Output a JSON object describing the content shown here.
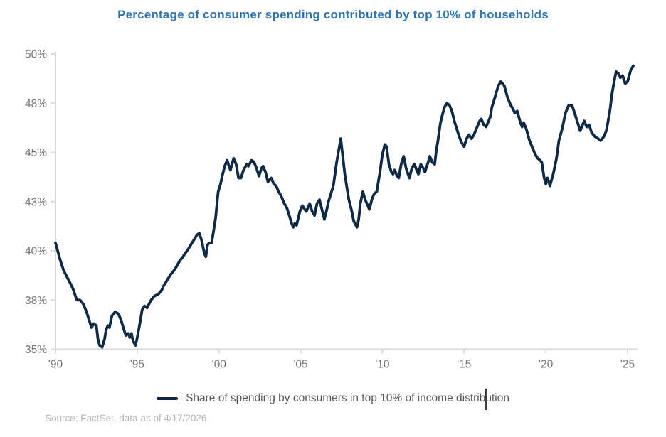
{
  "title": "Percentage of consumer spending contributed by top 10% of households",
  "legend": {
    "label": "Share of spending by consumers in top 10% of income distribution"
  },
  "source_note": "Source: FactSet, data as of 4/17/2026",
  "colors": {
    "line": "#0e2a47",
    "title": "#2e75b6",
    "axis": "#d8d8d8",
    "tick_label": "#767676",
    "legend_label": "#595959",
    "source_text": "#b5b5b5",
    "background": "#ffffff"
  },
  "chart_data": {
    "type": "line",
    "title": "Percentage of consumer spending contributed by top 10% of households",
    "xlabel": "",
    "ylabel": "",
    "grid": false,
    "legend_position": "bottom",
    "x_range": [
      1990,
      2025.6
    ],
    "y_range": [
      35,
      50
    ],
    "x_ticks": [
      {
        "label": "'90",
        "year": 1990
      },
      {
        "label": "'95",
        "year": 1995
      },
      {
        "label": "'00",
        "year": 2000
      },
      {
        "label": "'05",
        "year": 2005
      },
      {
        "label": "'10",
        "year": 2010
      },
      {
        "label": "'15",
        "year": 2015
      },
      {
        "label": "'20",
        "year": 2020
      },
      {
        "label": "'25",
        "year": 2025
      }
    ],
    "y_ticks": [
      {
        "label": "35%",
        "value": 35
      },
      {
        "label": "38%",
        "value": 37.5
      },
      {
        "label": "40%",
        "value": 40
      },
      {
        "label": "43%",
        "value": 42.5
      },
      {
        "label": "45%",
        "value": 45
      },
      {
        "label": "48%",
        "value": 47.5
      },
      {
        "label": "50%",
        "value": 50
      }
    ],
    "series": [
      {
        "name": "Share of spending by consumers in top 10% of income distribution",
        "points": [
          [
            1990.0,
            40.4
          ],
          [
            1990.3,
            39.5
          ],
          [
            1990.5,
            39.0
          ],
          [
            1990.75,
            38.6
          ],
          [
            1991.0,
            38.2
          ],
          [
            1991.1,
            38.0
          ],
          [
            1991.3,
            37.5
          ],
          [
            1991.5,
            37.5
          ],
          [
            1991.7,
            37.3
          ],
          [
            1991.9,
            36.9
          ],
          [
            1992.05,
            36.5
          ],
          [
            1992.2,
            36.1
          ],
          [
            1992.35,
            36.3
          ],
          [
            1992.5,
            36.2
          ],
          [
            1992.6,
            35.5
          ],
          [
            1992.7,
            35.2
          ],
          [
            1992.85,
            35.1
          ],
          [
            1993.0,
            35.5
          ],
          [
            1993.1,
            36.0
          ],
          [
            1993.2,
            36.2
          ],
          [
            1993.3,
            36.1
          ],
          [
            1993.45,
            36.7
          ],
          [
            1993.65,
            36.9
          ],
          [
            1993.85,
            36.8
          ],
          [
            1994.0,
            36.5
          ],
          [
            1994.15,
            36.1
          ],
          [
            1994.3,
            35.7
          ],
          [
            1994.45,
            35.8
          ],
          [
            1994.55,
            35.6
          ],
          [
            1994.65,
            35.8
          ],
          [
            1994.75,
            35.4
          ],
          [
            1994.9,
            35.2
          ],
          [
            1995.05,
            35.8
          ],
          [
            1995.2,
            36.5
          ],
          [
            1995.3,
            37.0
          ],
          [
            1995.45,
            37.2
          ],
          [
            1995.6,
            37.1
          ],
          [
            1995.85,
            37.5
          ],
          [
            1996.05,
            37.7
          ],
          [
            1996.3,
            37.8
          ],
          [
            1996.5,
            38.0
          ],
          [
            1996.6,
            38.2
          ],
          [
            1996.75,
            38.4
          ],
          [
            1996.9,
            38.6
          ],
          [
            1997.05,
            38.8
          ],
          [
            1997.25,
            39.0
          ],
          [
            1997.4,
            39.2
          ],
          [
            1997.6,
            39.5
          ],
          [
            1997.8,
            39.7
          ],
          [
            1997.95,
            39.9
          ],
          [
            1998.05,
            40.0
          ],
          [
            1998.2,
            40.2
          ],
          [
            1998.35,
            40.4
          ],
          [
            1998.5,
            40.6
          ],
          [
            1998.65,
            40.8
          ],
          [
            1998.8,
            40.9
          ],
          [
            1998.95,
            40.5
          ],
          [
            1999.1,
            39.9
          ],
          [
            1999.2,
            39.7
          ],
          [
            1999.3,
            40.3
          ],
          [
            1999.4,
            40.4
          ],
          [
            1999.55,
            40.4
          ],
          [
            1999.65,
            40.9
          ],
          [
            1999.8,
            41.7
          ],
          [
            1999.95,
            43.0
          ],
          [
            2000.1,
            43.4
          ],
          [
            2000.2,
            43.8
          ],
          [
            2000.35,
            44.3
          ],
          [
            2000.5,
            44.6
          ],
          [
            2000.7,
            44.1
          ],
          [
            2000.9,
            44.7
          ],
          [
            2001.05,
            44.4
          ],
          [
            2001.2,
            43.7
          ],
          [
            2001.35,
            43.7
          ],
          [
            2001.5,
            44.1
          ],
          [
            2001.7,
            44.4
          ],
          [
            2001.8,
            44.3
          ],
          [
            2002.0,
            44.6
          ],
          [
            2002.15,
            44.5
          ],
          [
            2002.3,
            44.2
          ],
          [
            2002.45,
            43.8
          ],
          [
            2002.6,
            44.2
          ],
          [
            2002.7,
            44.3
          ],
          [
            2002.85,
            44.0
          ],
          [
            2003.0,
            43.5
          ],
          [
            2003.2,
            43.7
          ],
          [
            2003.35,
            43.4
          ],
          [
            2003.5,
            43.3
          ],
          [
            2003.65,
            43.0
          ],
          [
            2003.8,
            42.8
          ],
          [
            2004.0,
            42.4
          ],
          [
            2004.15,
            42.2
          ],
          [
            2004.3,
            41.8
          ],
          [
            2004.45,
            41.4
          ],
          [
            2004.55,
            41.2
          ],
          [
            2004.65,
            41.4
          ],
          [
            2004.75,
            41.3
          ],
          [
            2004.95,
            42.0
          ],
          [
            2005.1,
            42.3
          ],
          [
            2005.25,
            42.1
          ],
          [
            2005.35,
            42.0
          ],
          [
            2005.55,
            42.4
          ],
          [
            2005.7,
            42.0
          ],
          [
            2005.85,
            41.8
          ],
          [
            2006.0,
            42.4
          ],
          [
            2006.15,
            42.6
          ],
          [
            2006.3,
            42.1
          ],
          [
            2006.45,
            41.6
          ],
          [
            2006.6,
            42.1
          ],
          [
            2006.7,
            42.5
          ],
          [
            2006.85,
            42.9
          ],
          [
            2007.0,
            43.3
          ],
          [
            2007.2,
            44.5
          ],
          [
            2007.45,
            45.7
          ],
          [
            2007.7,
            43.9
          ],
          [
            2007.85,
            43.1
          ],
          [
            2007.95,
            42.6
          ],
          [
            2008.1,
            42.1
          ],
          [
            2008.25,
            41.5
          ],
          [
            2008.45,
            41.2
          ],
          [
            2008.55,
            41.6
          ],
          [
            2008.65,
            42.4
          ],
          [
            2008.8,
            43.0
          ],
          [
            2008.95,
            42.6
          ],
          [
            2009.1,
            42.3
          ],
          [
            2009.2,
            42.1
          ],
          [
            2009.35,
            42.6
          ],
          [
            2009.5,
            42.9
          ],
          [
            2009.65,
            43.0
          ],
          [
            2009.85,
            44.0
          ],
          [
            2010.0,
            44.9
          ],
          [
            2010.15,
            45.4
          ],
          [
            2010.25,
            45.3
          ],
          [
            2010.4,
            44.4
          ],
          [
            2010.55,
            44.0
          ],
          [
            2010.65,
            43.9
          ],
          [
            2010.75,
            44.1
          ],
          [
            2010.9,
            43.8
          ],
          [
            2011.0,
            43.7
          ],
          [
            2011.15,
            44.4
          ],
          [
            2011.3,
            44.8
          ],
          [
            2011.45,
            44.2
          ],
          [
            2011.65,
            43.7
          ],
          [
            2011.8,
            44.2
          ],
          [
            2011.95,
            44.4
          ],
          [
            2012.1,
            44.1
          ],
          [
            2012.2,
            43.9
          ],
          [
            2012.35,
            44.4
          ],
          [
            2012.5,
            44.2
          ],
          [
            2012.6,
            44.0
          ],
          [
            2012.8,
            44.5
          ],
          [
            2012.9,
            44.8
          ],
          [
            2013.05,
            44.5
          ],
          [
            2013.2,
            44.4
          ],
          [
            2013.3,
            45.1
          ],
          [
            2013.4,
            45.6
          ],
          [
            2013.55,
            46.5
          ],
          [
            2013.7,
            47.0
          ],
          [
            2013.8,
            47.3
          ],
          [
            2013.95,
            47.5
          ],
          [
            2014.1,
            47.4
          ],
          [
            2014.25,
            47.1
          ],
          [
            2014.4,
            46.6
          ],
          [
            2014.55,
            46.2
          ],
          [
            2014.7,
            45.8
          ],
          [
            2014.85,
            45.5
          ],
          [
            2015.0,
            45.3
          ],
          [
            2015.15,
            45.7
          ],
          [
            2015.3,
            45.9
          ],
          [
            2015.45,
            45.7
          ],
          [
            2015.6,
            45.9
          ],
          [
            2015.75,
            46.2
          ],
          [
            2015.95,
            46.6
          ],
          [
            2016.05,
            46.7
          ],
          [
            2016.2,
            46.4
          ],
          [
            2016.35,
            46.3
          ],
          [
            2016.5,
            46.6
          ],
          [
            2016.6,
            46.8
          ],
          [
            2016.7,
            47.3
          ],
          [
            2016.85,
            47.7
          ],
          [
            2016.95,
            48.0
          ],
          [
            2017.1,
            48.4
          ],
          [
            2017.25,
            48.6
          ],
          [
            2017.45,
            48.4
          ],
          [
            2017.65,
            47.8
          ],
          [
            2017.85,
            47.4
          ],
          [
            2018.0,
            47.2
          ],
          [
            2018.1,
            47.0
          ],
          [
            2018.25,
            47.1
          ],
          [
            2018.45,
            46.5
          ],
          [
            2018.55,
            46.3
          ],
          [
            2018.65,
            46.5
          ],
          [
            2018.8,
            46.2
          ],
          [
            2019.0,
            45.6
          ],
          [
            2019.2,
            45.2
          ],
          [
            2019.35,
            44.9
          ],
          [
            2019.5,
            44.7
          ],
          [
            2019.65,
            44.6
          ],
          [
            2019.75,
            44.5
          ],
          [
            2019.9,
            43.7
          ],
          [
            2020.0,
            43.4
          ],
          [
            2020.1,
            43.7
          ],
          [
            2020.25,
            43.3
          ],
          [
            2020.45,
            43.9
          ],
          [
            2020.65,
            44.7
          ],
          [
            2020.8,
            45.6
          ],
          [
            2021.0,
            46.2
          ],
          [
            2021.2,
            47.0
          ],
          [
            2021.4,
            47.4
          ],
          [
            2021.6,
            47.4
          ],
          [
            2021.8,
            46.9
          ],
          [
            2021.95,
            46.5
          ],
          [
            2022.1,
            46.1
          ],
          [
            2022.25,
            46.4
          ],
          [
            2022.35,
            46.6
          ],
          [
            2022.5,
            46.3
          ],
          [
            2022.65,
            46.4
          ],
          [
            2022.8,
            46.0
          ],
          [
            2023.0,
            45.8
          ],
          [
            2023.2,
            45.7
          ],
          [
            2023.35,
            45.6
          ],
          [
            2023.55,
            45.8
          ],
          [
            2023.7,
            46.1
          ],
          [
            2023.9,
            47.0
          ],
          [
            2024.05,
            48.0
          ],
          [
            2024.2,
            48.7
          ],
          [
            2024.3,
            49.1
          ],
          [
            2024.45,
            49.0
          ],
          [
            2024.55,
            48.8
          ],
          [
            2024.7,
            48.9
          ],
          [
            2024.85,
            48.5
          ],
          [
            2025.0,
            48.6
          ],
          [
            2025.2,
            49.2
          ],
          [
            2025.35,
            49.4
          ]
        ]
      }
    ]
  }
}
